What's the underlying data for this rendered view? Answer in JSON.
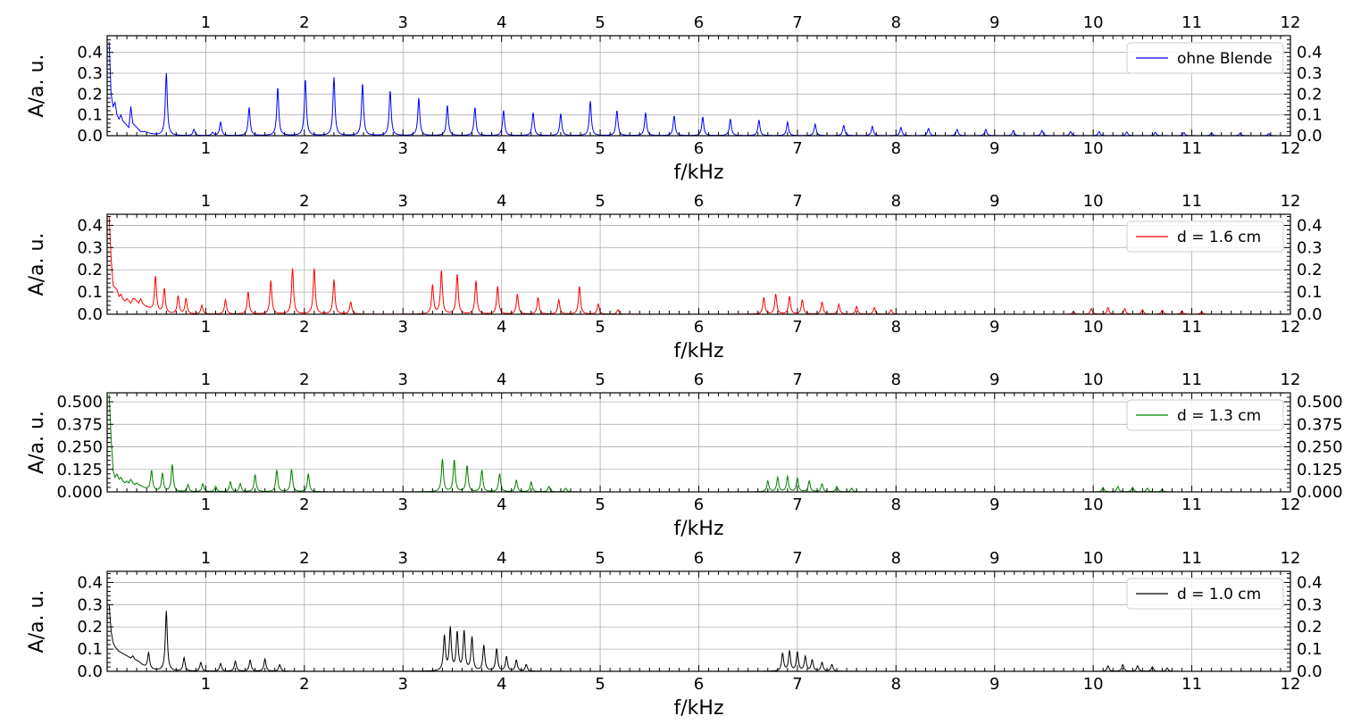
{
  "chart_data": [
    {
      "type": "line",
      "panel": 1,
      "xlim": [
        0.0,
        12.0
      ],
      "ylim": [
        0.0,
        0.48
      ],
      "xlabel": "f/kHz",
      "ylabel": "A/a. u.",
      "x_ticks": [
        1,
        2,
        3,
        4,
        5,
        6,
        7,
        8,
        9,
        10,
        11,
        12
      ],
      "y_ticks": [
        0.0,
        0.1,
        0.2,
        0.3,
        0.4
      ],
      "y_tick_labels": [
        "0.0",
        "0.1",
        "0.2",
        "0.3",
        "0.4"
      ],
      "grid": true,
      "legend_position": "top-right",
      "series": [
        {
          "name": "ohne Blende",
          "color": "#0000ff",
          "low_freq": [
            [
              0.02,
              0.45
            ],
            [
              0.04,
              0.2
            ],
            [
              0.06,
              0.14
            ],
            [
              0.08,
              0.16
            ],
            [
              0.1,
              0.1
            ],
            [
              0.12,
              0.08
            ],
            [
              0.14,
              0.1
            ],
            [
              0.16,
              0.07
            ],
            [
              0.18,
              0.06
            ],
            [
              0.2,
              0.05
            ],
            [
              0.22,
              0.04
            ],
            [
              0.24,
              0.14
            ],
            [
              0.26,
              0.06
            ],
            [
              0.28,
              0.05
            ],
            [
              0.3,
              0.04
            ],
            [
              0.32,
              0.03
            ],
            [
              0.34,
              0.02
            ],
            [
              0.38,
              0.02
            ]
          ],
          "peaks": [
            [
              0.6,
              0.3
            ],
            [
              0.88,
              0.03
            ],
            [
              1.07,
              0.015
            ],
            [
              1.15,
              0.065
            ],
            [
              1.44,
              0.135
            ],
            [
              1.73,
              0.23
            ],
            [
              2.01,
              0.27
            ],
            [
              2.3,
              0.28
            ],
            [
              2.59,
              0.25
            ],
            [
              2.87,
              0.215
            ],
            [
              3.16,
              0.18
            ],
            [
              3.45,
              0.145
            ],
            [
              3.73,
              0.135
            ],
            [
              4.02,
              0.12
            ],
            [
              4.32,
              0.11
            ],
            [
              4.6,
              0.105
            ],
            [
              4.9,
              0.165
            ],
            [
              5.17,
              0.12
            ],
            [
              5.46,
              0.11
            ],
            [
              5.75,
              0.095
            ],
            [
              6.04,
              0.09
            ],
            [
              6.32,
              0.08
            ],
            [
              6.61,
              0.075
            ],
            [
              6.9,
              0.065
            ],
            [
              7.18,
              0.055
            ],
            [
              7.47,
              0.05
            ],
            [
              7.76,
              0.045
            ],
            [
              8.05,
              0.04
            ],
            [
              8.33,
              0.035
            ],
            [
              8.62,
              0.03
            ],
            [
              8.91,
              0.03
            ],
            [
              9.19,
              0.025
            ],
            [
              9.48,
              0.025
            ],
            [
              9.77,
              0.02
            ],
            [
              10.06,
              0.02
            ],
            [
              10.34,
              0.018
            ],
            [
              10.63,
              0.016
            ],
            [
              10.92,
              0.015
            ],
            [
              11.2,
              0.014
            ],
            [
              11.49,
              0.012
            ],
            [
              11.78,
              0.01
            ]
          ]
        }
      ]
    },
    {
      "type": "line",
      "panel": 2,
      "xlim": [
        0.0,
        12.0
      ],
      "ylim": [
        0.0,
        0.45
      ],
      "xlabel": "f/kHz",
      "ylabel": "A/a. u.",
      "x_ticks": [
        1,
        2,
        3,
        4,
        5,
        6,
        7,
        8,
        9,
        10,
        11,
        12
      ],
      "y_ticks": [
        0.0,
        0.1,
        0.2,
        0.3,
        0.4
      ],
      "y_tick_labels": [
        "0.0",
        "0.1",
        "0.2",
        "0.3",
        "0.4"
      ],
      "grid": true,
      "legend_position": "top-right",
      "series": [
        {
          "name": "d = 1.6 cm",
          "color": "#ff0000",
          "low_freq": [
            [
              0.02,
              0.44
            ],
            [
              0.04,
              0.25
            ],
            [
              0.06,
              0.13
            ],
            [
              0.08,
              0.12
            ],
            [
              0.1,
              0.11
            ],
            [
              0.12,
              0.08
            ],
            [
              0.14,
              0.09
            ],
            [
              0.16,
              0.07
            ],
            [
              0.18,
              0.06
            ],
            [
              0.2,
              0.07
            ],
            [
              0.22,
              0.06
            ],
            [
              0.24,
              0.05
            ],
            [
              0.26,
              0.07
            ],
            [
              0.28,
              0.07
            ],
            [
              0.3,
              0.06
            ],
            [
              0.32,
              0.05
            ],
            [
              0.34,
              0.07
            ],
            [
              0.36,
              0.05
            ],
            [
              0.38,
              0.04
            ],
            [
              0.4,
              0.035
            ]
          ],
          "peaks": [
            [
              0.49,
              0.16
            ],
            [
              0.58,
              0.11
            ],
            [
              0.72,
              0.08
            ],
            [
              0.8,
              0.07
            ],
            [
              0.96,
              0.04
            ],
            [
              1.2,
              0.065
            ],
            [
              1.43,
              0.1
            ],
            [
              1.66,
              0.15
            ],
            [
              1.88,
              0.205
            ],
            [
              2.1,
              0.205
            ],
            [
              2.3,
              0.155
            ],
            [
              2.47,
              0.055
            ],
            [
              3.3,
              0.13
            ],
            [
              3.39,
              0.195
            ],
            [
              3.55,
              0.18
            ],
            [
              3.74,
              0.15
            ],
            [
              3.96,
              0.125
            ],
            [
              4.16,
              0.09
            ],
            [
              4.37,
              0.075
            ],
            [
              4.58,
              0.065
            ],
            [
              4.79,
              0.125
            ],
            [
              4.98,
              0.045
            ],
            [
              5.18,
              0.02
            ],
            [
              6.66,
              0.075
            ],
            [
              6.78,
              0.09
            ],
            [
              6.92,
              0.08
            ],
            [
              7.05,
              0.065
            ],
            [
              7.25,
              0.055
            ],
            [
              7.42,
              0.045
            ],
            [
              7.6,
              0.035
            ],
            [
              7.78,
              0.03
            ],
            [
              7.95,
              0.02
            ],
            [
              9.8,
              0.012
            ],
            [
              9.98,
              0.025
            ],
            [
              10.15,
              0.03
            ],
            [
              10.32,
              0.025
            ],
            [
              10.5,
              0.02
            ],
            [
              10.7,
              0.018
            ],
            [
              10.9,
              0.015
            ],
            [
              11.1,
              0.012
            ]
          ]
        }
      ]
    },
    {
      "type": "line",
      "panel": 3,
      "xlim": [
        0.0,
        12.0
      ],
      "ylim": [
        0.0,
        0.55
      ],
      "xlabel": "f/kHz",
      "ylabel": "A/a. u.",
      "x_ticks": [
        1,
        2,
        3,
        4,
        5,
        6,
        7,
        8,
        9,
        10,
        11,
        12
      ],
      "y_ticks": [
        0.0,
        0.125,
        0.25,
        0.375,
        0.5
      ],
      "y_tick_labels": [
        "0.000",
        "0.125",
        "0.250",
        "0.375",
        "0.500"
      ],
      "grid": true,
      "legend_position": "top-right",
      "series": [
        {
          "name": "d = 1.3 cm",
          "color": "#008000",
          "low_freq": [
            [
              0.02,
              0.54
            ],
            [
              0.04,
              0.3
            ],
            [
              0.06,
              0.12
            ],
            [
              0.08,
              0.08
            ],
            [
              0.1,
              0.1
            ],
            [
              0.12,
              0.07
            ],
            [
              0.14,
              0.08
            ],
            [
              0.16,
              0.06
            ],
            [
              0.18,
              0.05
            ],
            [
              0.2,
              0.06
            ],
            [
              0.22,
              0.05
            ],
            [
              0.24,
              0.07
            ],
            [
              0.26,
              0.05
            ],
            [
              0.28,
              0.04
            ],
            [
              0.3,
              0.05
            ],
            [
              0.32,
              0.04
            ],
            [
              0.34,
              0.035
            ]
          ],
          "peaks": [
            [
              0.45,
              0.11
            ],
            [
              0.56,
              0.1
            ],
            [
              0.66,
              0.15
            ],
            [
              0.82,
              0.04
            ],
            [
              0.97,
              0.045
            ],
            [
              1.1,
              0.03
            ],
            [
              1.25,
              0.055
            ],
            [
              1.35,
              0.045
            ],
            [
              1.5,
              0.095
            ],
            [
              1.72,
              0.12
            ],
            [
              1.87,
              0.125
            ],
            [
              2.04,
              0.1
            ],
            [
              3.4,
              0.18
            ],
            [
              3.52,
              0.175
            ],
            [
              3.65,
              0.145
            ],
            [
              3.8,
              0.12
            ],
            [
              3.98,
              0.1
            ],
            [
              4.15,
              0.065
            ],
            [
              4.3,
              0.055
            ],
            [
              4.48,
              0.03
            ],
            [
              4.65,
              0.02
            ],
            [
              6.7,
              0.06
            ],
            [
              6.8,
              0.08
            ],
            [
              6.9,
              0.085
            ],
            [
              7.0,
              0.075
            ],
            [
              7.12,
              0.06
            ],
            [
              7.25,
              0.045
            ],
            [
              7.4,
              0.03
            ],
            [
              7.55,
              0.02
            ],
            [
              10.1,
              0.025
            ],
            [
              10.25,
              0.03
            ],
            [
              10.4,
              0.025
            ],
            [
              10.55,
              0.02
            ],
            [
              10.7,
              0.015
            ]
          ]
        }
      ]
    },
    {
      "type": "line",
      "panel": 4,
      "xlim": [
        0.0,
        12.0
      ],
      "ylim": [
        0.0,
        0.45
      ],
      "xlabel": "f/kHz",
      "ylabel": "A/a. u.",
      "x_ticks": [
        1,
        2,
        3,
        4,
        5,
        6,
        7,
        8,
        9,
        10,
        11,
        12
      ],
      "y_ticks": [
        0.0,
        0.1,
        0.2,
        0.3,
        0.4
      ],
      "y_tick_labels": [
        "0.0",
        "0.1",
        "0.2",
        "0.3",
        "0.4"
      ],
      "grid": true,
      "legend_position": "top-right",
      "series": [
        {
          "name": "d = 1.0 cm",
          "color": "#000000",
          "low_freq": [
            [
              0.02,
              0.3
            ],
            [
              0.04,
              0.18
            ],
            [
              0.06,
              0.13
            ],
            [
              0.08,
              0.11
            ],
            [
              0.1,
              0.1
            ],
            [
              0.12,
              0.09
            ],
            [
              0.14,
              0.085
            ],
            [
              0.16,
              0.08
            ],
            [
              0.18,
              0.075
            ],
            [
              0.2,
              0.07
            ],
            [
              0.22,
              0.065
            ],
            [
              0.24,
              0.06
            ],
            [
              0.26,
              0.07
            ],
            [
              0.28,
              0.055
            ],
            [
              0.3,
              0.05
            ],
            [
              0.32,
              0.045
            ]
          ],
          "peaks": [
            [
              0.42,
              0.07
            ],
            [
              0.6,
              0.27
            ],
            [
              0.78,
              0.06
            ],
            [
              0.95,
              0.04
            ],
            [
              1.15,
              0.035
            ],
            [
              1.3,
              0.045
            ],
            [
              1.45,
              0.05
            ],
            [
              1.6,
              0.055
            ],
            [
              1.75,
              0.03
            ],
            [
              3.42,
              0.155
            ],
            [
              3.48,
              0.19
            ],
            [
              3.55,
              0.17
            ],
            [
              3.62,
              0.175
            ],
            [
              3.7,
              0.15
            ],
            [
              3.82,
              0.115
            ],
            [
              3.95,
              0.1
            ],
            [
              4.05,
              0.065
            ],
            [
              4.15,
              0.05
            ],
            [
              4.25,
              0.03
            ],
            [
              6.85,
              0.08
            ],
            [
              6.92,
              0.09
            ],
            [
              7.0,
              0.085
            ],
            [
              7.08,
              0.065
            ],
            [
              7.15,
              0.05
            ],
            [
              7.25,
              0.04
            ],
            [
              7.35,
              0.03
            ],
            [
              10.15,
              0.025
            ],
            [
              10.3,
              0.03
            ],
            [
              10.45,
              0.025
            ],
            [
              10.6,
              0.02
            ],
            [
              10.75,
              0.015
            ]
          ]
        }
      ]
    }
  ]
}
